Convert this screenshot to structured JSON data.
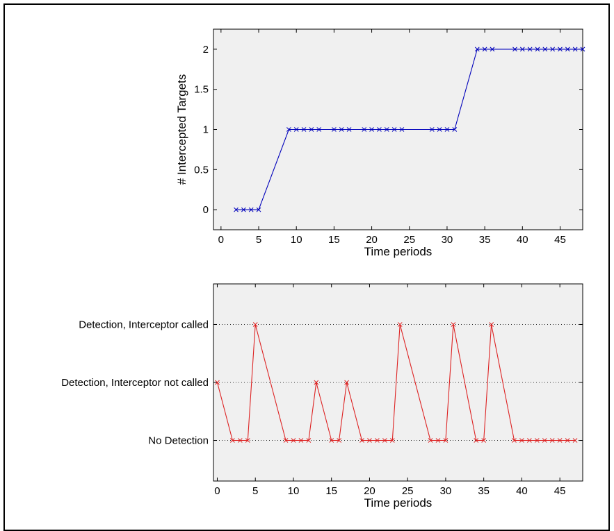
{
  "chart_data": [
    {
      "type": "line",
      "xlabel": "Time periods",
      "ylabel": "# Intercepted Targets",
      "xlim": [
        -1,
        48
      ],
      "ylim": [
        -0.25,
        2.25
      ],
      "xticks": [
        0,
        5,
        10,
        15,
        20,
        25,
        30,
        35,
        40,
        45
      ],
      "yticks": [
        0,
        0.5,
        1,
        1.5,
        2
      ],
      "ytick_labels": [
        "0",
        "0.5",
        "1",
        "1.5",
        "2"
      ],
      "marker": "x",
      "series": [
        {
          "color": "#0000bb",
          "x": [
            2,
            3,
            4,
            5,
            9,
            10,
            11,
            12,
            13,
            15,
            16,
            17,
            19,
            20,
            21,
            22,
            23,
            24,
            28,
            29,
            30,
            31,
            34,
            35,
            36,
            39,
            40,
            41,
            42,
            43,
            44,
            45,
            46,
            47,
            48
          ],
          "y": [
            0,
            0,
            0,
            0,
            1,
            1,
            1,
            1,
            1,
            1,
            1,
            1,
            1,
            1,
            1,
            1,
            1,
            1,
            1,
            1,
            1,
            1,
            2,
            2,
            2,
            2,
            2,
            2,
            2,
            2,
            2,
            2,
            2,
            2,
            2
          ]
        }
      ]
    },
    {
      "type": "line",
      "xlabel": "Time periods",
      "ylabel": "",
      "xlim": [
        -0.5,
        48
      ],
      "ylim": [
        -0.7,
        2.7
      ],
      "xticks": [
        0,
        5,
        10,
        15,
        20,
        25,
        30,
        35,
        40,
        45
      ],
      "yticks": [
        0,
        1,
        2
      ],
      "ytick_labels": [
        "No Detection",
        "Detection, Interceptor not called",
        "Detection, Interceptor called"
      ],
      "grid": "y-dotted",
      "marker": "x",
      "series": [
        {
          "color": "#dd2222",
          "x": [
            0,
            2,
            3,
            4,
            5,
            9,
            10,
            11,
            12,
            13,
            15,
            16,
            17,
            19,
            20,
            21,
            22,
            23,
            24,
            28,
            29,
            30,
            31,
            34,
            35,
            36,
            39,
            40,
            41,
            42,
            43,
            44,
            45,
            46,
            47
          ],
          "y": [
            1,
            0,
            0,
            0,
            2,
            0,
            0,
            0,
            0,
            1,
            0,
            0,
            1,
            0,
            0,
            0,
            0,
            0,
            2,
            0,
            0,
            0,
            2,
            0,
            0,
            2,
            0,
            0,
            0,
            0,
            0,
            0,
            0,
            0,
            0
          ]
        }
      ]
    }
  ]
}
